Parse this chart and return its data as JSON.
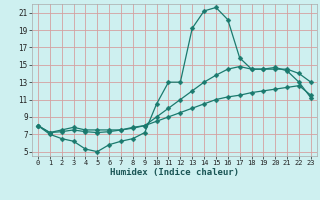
{
  "xlabel": "Humidex (Indice chaleur)",
  "bg_color": "#cef0f0",
  "grid_color": "#d4a0a0",
  "line_color": "#1a7a6e",
  "xlim": [
    -0.5,
    23.5
  ],
  "ylim": [
    4.5,
    22
  ],
  "yticks": [
    5,
    7,
    9,
    11,
    13,
    15,
    17,
    19,
    21
  ],
  "xticks": [
    0,
    1,
    2,
    3,
    4,
    5,
    6,
    7,
    8,
    9,
    10,
    11,
    12,
    13,
    14,
    15,
    16,
    17,
    18,
    19,
    20,
    21,
    22,
    23
  ],
  "line1_x": [
    0,
    1,
    2,
    3,
    4,
    5,
    6,
    7,
    8,
    9,
    10,
    11,
    12,
    13,
    14,
    15,
    16,
    17,
    18,
    19,
    20,
    21,
    22,
    23
  ],
  "line1_y": [
    8.0,
    7.0,
    6.5,
    6.2,
    5.3,
    5.0,
    5.8,
    6.2,
    6.5,
    7.2,
    10.5,
    13.0,
    13.0,
    19.2,
    21.2,
    21.6,
    20.2,
    15.8,
    14.5,
    14.5,
    14.7,
    14.3,
    13.0,
    11.2
  ],
  "line2_x": [
    0,
    1,
    2,
    3,
    4,
    5,
    6,
    7,
    8,
    9,
    10,
    11,
    12,
    13,
    14,
    15,
    16,
    17,
    18,
    19,
    20,
    21,
    22,
    23
  ],
  "line2_y": [
    8.0,
    7.2,
    7.5,
    7.8,
    7.5,
    7.5,
    7.5,
    7.5,
    7.8,
    8.0,
    9.0,
    10.0,
    11.0,
    12.0,
    13.0,
    13.8,
    14.5,
    14.8,
    14.5,
    14.5,
    14.5,
    14.5,
    14.0,
    13.0
  ],
  "line3_x": [
    0,
    1,
    2,
    3,
    4,
    5,
    6,
    7,
    8,
    9,
    10,
    11,
    12,
    13,
    14,
    15,
    16,
    17,
    18,
    19,
    20,
    21,
    22,
    23
  ],
  "line3_y": [
    8.0,
    7.2,
    7.3,
    7.5,
    7.3,
    7.2,
    7.3,
    7.5,
    7.7,
    8.0,
    8.5,
    9.0,
    9.5,
    10.0,
    10.5,
    11.0,
    11.3,
    11.5,
    11.8,
    12.0,
    12.2,
    12.4,
    12.6,
    11.5
  ]
}
